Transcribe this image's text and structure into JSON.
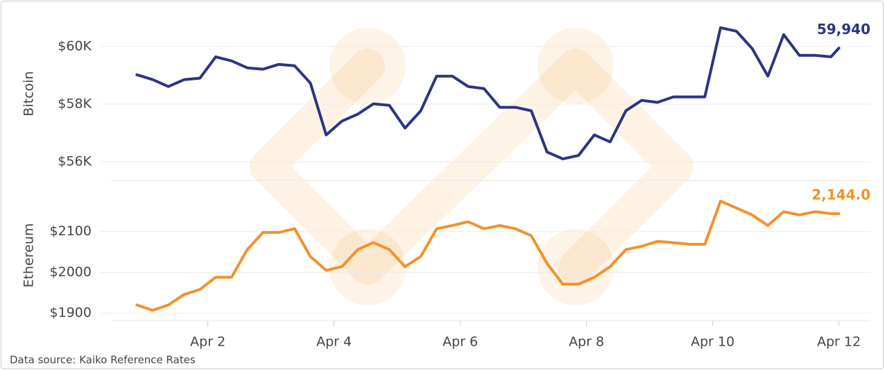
{
  "chart_data": [
    {
      "type": "line",
      "ylabel": "Bitcoin",
      "color": "#2b3483",
      "x": [
        0.875,
        1.125,
        1.375,
        1.625,
        1.875,
        2.125,
        2.375,
        2.625,
        2.875,
        3.125,
        3.375,
        3.625,
        3.875,
        4.125,
        4.375,
        4.625,
        4.875,
        5.125,
        5.375,
        5.625,
        5.875,
        6.125,
        6.375,
        6.625,
        6.875,
        7.125,
        7.375,
        7.625,
        7.875,
        8.125,
        8.375,
        8.625,
        8.875,
        9.125,
        9.375,
        9.625,
        9.875,
        10.125,
        10.375,
        10.625,
        10.875,
        11.125,
        11.375,
        11.625,
        11.875,
        12.0
      ],
      "values": [
        59018,
        58850,
        58610,
        58850,
        58900,
        59640,
        59500,
        59260,
        59210,
        59380,
        59330,
        58730,
        56930,
        57410,
        57650,
        58010,
        57960,
        57170,
        57770,
        58970,
        58970,
        58610,
        58540,
        57890,
        57890,
        57770,
        56340,
        56100,
        56220,
        56930,
        56690,
        57770,
        58130,
        58060,
        58250,
        58250,
        58250,
        60650,
        60530,
        59930,
        58970,
        60410,
        59690,
        59690,
        59640,
        59940
      ],
      "value_labels": [
        null,
        null,
        null,
        null,
        null,
        null,
        null,
        null,
        null,
        null,
        null,
        null,
        null,
        null,
        null,
        null,
        null,
        null,
        null,
        null,
        null,
        null,
        null,
        null,
        null,
        null,
        null,
        null,
        null,
        null,
        null,
        null,
        null,
        null,
        null,
        null,
        null,
        null,
        null,
        null,
        null,
        null,
        null,
        null,
        null,
        "59,940"
      ],
      "xlim": [
        0.3,
        12.5
      ],
      "ylim": [
        55400,
        61250
      ],
      "yticks": [
        {
          "value": 56000,
          "label": "$56K"
        },
        {
          "value": 58000,
          "label": "$58K"
        },
        {
          "value": 60000,
          "label": "$60K"
        }
      ],
      "grid": true
    },
    {
      "type": "line",
      "ylabel": "Ethereum",
      "color": "#f39129",
      "x": [
        0.875,
        1.125,
        1.375,
        1.625,
        1.875,
        2.125,
        2.375,
        2.625,
        2.875,
        3.125,
        3.375,
        3.625,
        3.875,
        4.125,
        4.375,
        4.625,
        4.875,
        5.125,
        5.375,
        5.625,
        5.875,
        6.125,
        6.375,
        6.625,
        6.875,
        7.125,
        7.375,
        7.625,
        7.875,
        8.125,
        8.375,
        8.625,
        8.875,
        9.125,
        9.375,
        9.625,
        9.875,
        10.125,
        10.375,
        10.625,
        10.875,
        11.125,
        11.375,
        11.625,
        11.875,
        12.0
      ],
      "values": [
        1920,
        1907,
        1920,
        1946,
        1958,
        1988,
        1988,
        2056,
        2098,
        2098,
        2107,
        2039,
        2005,
        2014,
        2056,
        2073,
        2056,
        2014,
        2039,
        2107,
        2115,
        2124,
        2107,
        2115,
        2107,
        2090,
        2022,
        1971,
        1971,
        1988,
        2014,
        2056,
        2064,
        2076,
        2073,
        2069,
        2069,
        2175,
        2158,
        2141,
        2115,
        2149,
        2141,
        2149,
        2144,
        2144
      ],
      "value_labels": [
        null,
        null,
        null,
        null,
        null,
        null,
        null,
        null,
        null,
        null,
        null,
        null,
        null,
        null,
        null,
        null,
        null,
        null,
        null,
        null,
        null,
        null,
        null,
        null,
        null,
        null,
        null,
        null,
        null,
        null,
        null,
        null,
        null,
        null,
        null,
        null,
        null,
        null,
        null,
        null,
        null,
        null,
        null,
        null,
        null,
        "2,144.0"
      ],
      "xlim": [
        0.3,
        12.5
      ],
      "ylim": [
        1885,
        2200
      ],
      "yticks": [
        {
          "value": 1900,
          "label": "$1900"
        },
        {
          "value": 2000,
          "label": "$2000"
        },
        {
          "value": 2100,
          "label": "$2100"
        }
      ],
      "xticks": [
        {
          "value": 2,
          "label": "Apr 2"
        },
        {
          "value": 4,
          "label": "Apr 4"
        },
        {
          "value": 6,
          "label": "Apr 6"
        },
        {
          "value": 8,
          "label": "Apr 8"
        },
        {
          "value": 10,
          "label": "Apr 10"
        },
        {
          "value": 12,
          "label": "Apr 12"
        }
      ],
      "grid": true
    }
  ],
  "source": "Data source: Kaiko Reference Rates"
}
